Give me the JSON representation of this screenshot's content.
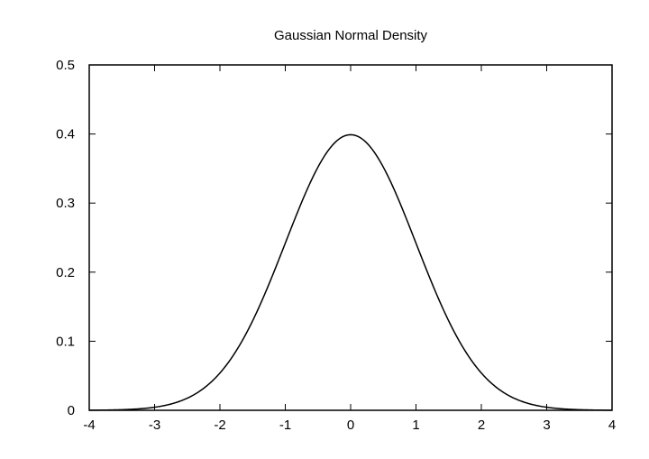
{
  "chart_data": {
    "type": "line",
    "title": "Gaussian Normal Density",
    "xlabel": "",
    "ylabel": "",
    "xlim": [
      -4,
      4
    ],
    "ylim": [
      0,
      0.5
    ],
    "xticks": [
      "-4",
      "-3",
      "-2",
      "-1",
      "0",
      "1",
      "2",
      "3",
      "4"
    ],
    "yticks": [
      "0",
      "0.1",
      "0.2",
      "0.3",
      "0.4",
      "0.5"
    ],
    "grid": false,
    "series": [
      {
        "function": "standard normal pdf, mean 0, sd 1",
        "x": [
          -4,
          -3.5,
          -3,
          -2.5,
          -2,
          -1.5,
          -1,
          -0.5,
          0,
          0.5,
          1,
          1.5,
          2,
          2.5,
          3,
          3.5,
          4
        ],
        "y": [
          0.0001,
          0.0009,
          0.0044,
          0.0175,
          0.054,
          0.1295,
          0.242,
          0.3521,
          0.3989,
          0.3521,
          0.242,
          0.1295,
          0.054,
          0.0175,
          0.0044,
          0.0009,
          0.0001
        ],
        "color": "#000000"
      }
    ]
  }
}
